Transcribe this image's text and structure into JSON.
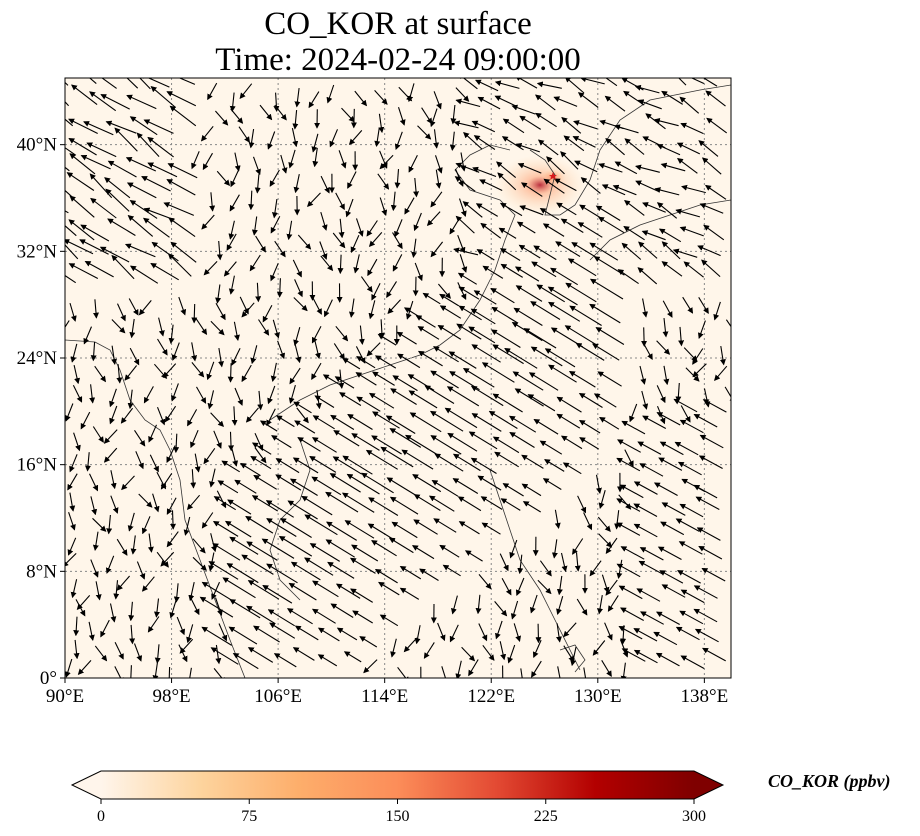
{
  "title": {
    "line1": "CO_KOR at surface",
    "line2": "Time: 2024-02-24 09:00:00"
  },
  "map": {
    "lon_range": [
      90,
      140
    ],
    "lat_range": [
      0,
      45
    ],
    "background_color": "#fff6ea",
    "gridline_color": "#888888",
    "x_ticks": [
      "90°E",
      "98°E",
      "106°E",
      "114°E",
      "122°E",
      "130°E",
      "138°E"
    ],
    "y_ticks": [
      "0°",
      "8°N",
      "16°N",
      "24°N",
      "32°N",
      "40°N"
    ],
    "plume_color": "#b2182b"
  },
  "colorbar": {
    "title": "CO_KOR (ppbv)",
    "ticks": [
      "0",
      "75",
      "150",
      "225",
      "300"
    ],
    "stops": [
      "#fff5eb",
      "#fdd49e",
      "#fdae6b",
      "#fc8d59",
      "#e34a33",
      "#b30000",
      "#7f0000"
    ]
  }
}
